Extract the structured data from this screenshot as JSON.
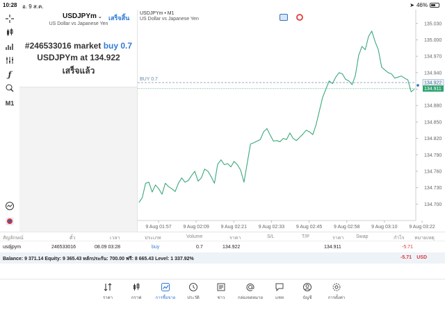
{
  "status_bar": {
    "time": "10:28",
    "date": "อ. 9 ส.ค.",
    "battery": "46%",
    "battery_level": 0.46
  },
  "order_panel": {
    "symbol": "USDJPYm",
    "done_button": "เสร็จสิ้น",
    "description": "US Dollar vs Japanese Yen",
    "line1_prefix": "#246533016 market",
    "line1_action": "buy 0.7",
    "line2_prefix": "USDJPYm at",
    "line2_price": "134.922",
    "line3": "เสร็จแล้ว"
  },
  "toolbar": {
    "timeframe": "M1"
  },
  "chart": {
    "title": "USDJPYm • M1",
    "subtitle": "US Dollar vs Japanese Yen",
    "position_label": "BUY 0.7",
    "position_price_label": "134.922",
    "current_price_label": "134.911",
    "colors": {
      "line": "#3aa87a",
      "position": "#8aa0b8",
      "price_tag": "#2fa36f",
      "grid": "#f0f0f0"
    }
  },
  "chart_data": {
    "type": "line",
    "ylim": [
      134.67,
      135.05
    ],
    "y_ticks": [
      "135.030",
      "135.000",
      "134.970",
      "134.940",
      "134.910",
      "134.880",
      "134.850",
      "134.820",
      "134.790",
      "134.760",
      "134.730",
      "134.700"
    ],
    "x_ticks": [
      "9 Aug 01:57",
      "9 Aug 02:09",
      "9 Aug 02:21",
      "9 Aug 02:33",
      "9 Aug 02:45",
      "9 Aug 02:58",
      "9 Aug 03:10",
      "9 Aug 03:22"
    ],
    "position_price": 134.922,
    "current_price": 134.911,
    "series": [
      {
        "values": [
          134.703,
          134.712,
          134.738,
          134.74,
          134.722,
          134.735,
          134.728,
          134.718,
          134.738,
          134.732,
          134.728,
          134.723,
          134.738,
          134.748,
          134.74,
          134.743,
          134.752,
          134.76,
          134.742,
          134.748,
          134.764,
          134.76,
          134.75,
          134.738,
          134.773,
          134.781,
          134.772,
          134.774,
          134.768,
          134.778,
          134.772,
          134.762,
          134.74,
          134.775,
          134.81,
          134.812,
          134.815,
          134.818,
          134.832,
          134.838,
          134.826,
          134.815,
          134.816,
          134.814,
          134.82,
          134.818,
          134.83,
          134.82,
          134.816,
          134.822,
          134.828,
          134.835,
          134.832,
          134.827,
          134.845,
          134.87,
          134.895,
          134.91,
          134.925,
          134.92,
          134.932,
          134.94,
          134.938,
          134.928,
          134.925,
          134.918,
          134.935,
          134.972,
          134.988,
          134.982,
          135.006,
          135.016,
          134.997,
          134.982,
          134.95,
          134.945,
          134.94,
          134.938,
          134.93,
          134.932,
          134.934,
          134.93,
          134.927,
          134.905,
          134.91
        ]
      }
    ]
  },
  "table": {
    "headers": [
      "สัญลักษณ์",
      "ตั๋ว",
      "เวลา",
      "ประเภท",
      "Volume",
      "ราคา",
      "S/L",
      "T/P",
      "ราคา",
      "Swap",
      "กำไร",
      "หมายเหตุ"
    ],
    "row": {
      "symbol": "usdjpym",
      "ticket": "246533016",
      "time": "08.09 03:28",
      "type": "buy",
      "volume": "0.7",
      "open_price": "134.922",
      "current_price": "134.911",
      "profit": "-5.71"
    },
    "balance_text": "Balance: 9 371.14 Equity: 9 365.43 หลักประกัน: 700.00 ฟรี: 8 665.43 Level: 1 337.92%",
    "balance_profit": "-5.71",
    "currency": "USD"
  },
  "bottom_nav": {
    "items": [
      {
        "label": "ราคา",
        "icon": "quotes-icon"
      },
      {
        "label": "กราฟ",
        "icon": "candles-icon"
      },
      {
        "label": "การซื้อขาย",
        "icon": "trade-icon"
      },
      {
        "label": "ประวัติ",
        "icon": "history-icon"
      },
      {
        "label": "ข่าว",
        "icon": "news-icon"
      },
      {
        "label": "กล่องจดหมาย",
        "icon": "mailbox-icon"
      },
      {
        "label": "แชท",
        "icon": "chat-icon"
      },
      {
        "label": "บัญชี",
        "icon": "account-icon"
      },
      {
        "label": "การตั้งค่า",
        "icon": "settings-icon"
      }
    ]
  }
}
